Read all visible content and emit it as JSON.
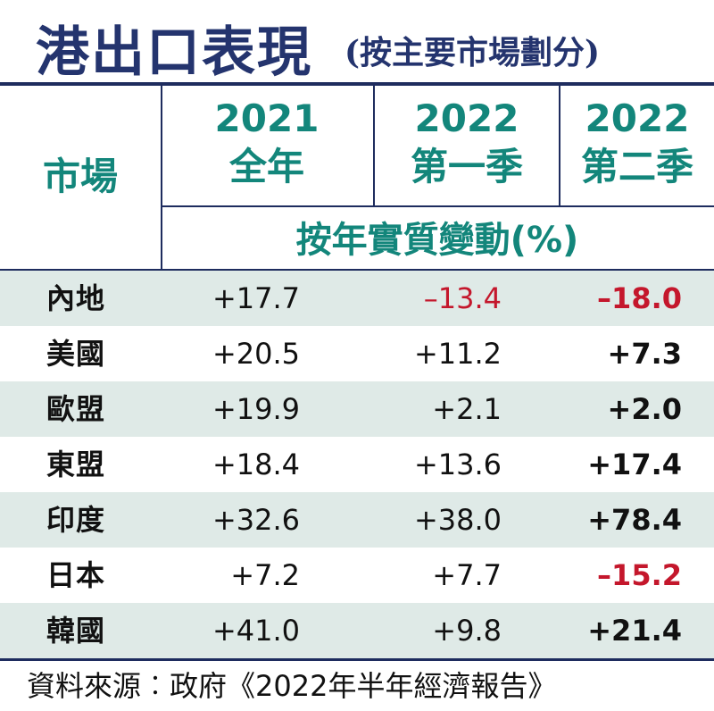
{
  "title": "港出口表現",
  "subtitle": "(按主要市場劃分)",
  "headers": {
    "market": "市場",
    "col2021_year": "2021",
    "col2021_period": "全年",
    "colq1_year": "2022",
    "colq1_period": "第一季",
    "colq2_year": "2022",
    "colq2_period": "第二季",
    "unit": "按年實質變動(%)"
  },
  "chart_data": {
    "type": "table",
    "columns": [
      "市場",
      "2021 全年",
      "2022 第一季",
      "2022 第二季"
    ],
    "rows": [
      {
        "market": "內地",
        "v2021": "+17.7",
        "q1": "–13.4",
        "q2": "–18.0",
        "q1_neg": true,
        "q2_neg": true
      },
      {
        "market": "美國",
        "v2021": "+20.5",
        "q1": "+11.2",
        "q2": "+7.3",
        "q1_neg": false,
        "q2_neg": false
      },
      {
        "market": "歐盟",
        "v2021": "+19.9",
        "q1": "+2.1",
        "q2": "+2.0",
        "q1_neg": false,
        "q2_neg": false
      },
      {
        "market": "東盟",
        "v2021": "+18.4",
        "q1": "+13.6",
        "q2": "+17.4",
        "q1_neg": false,
        "q2_neg": false
      },
      {
        "market": "印度",
        "v2021": "+32.6",
        "q1": "+38.0",
        "q2": "+78.4",
        "q1_neg": false,
        "q2_neg": false
      },
      {
        "market": "日本",
        "v2021": "+7.2",
        "q1": "+7.7",
        "q2": "–15.2",
        "q1_neg": false,
        "q2_neg": true
      },
      {
        "market": "韓國",
        "v2021": "+41.0",
        "q1": "+9.8",
        "q2": "+21.4",
        "q1_neg": false,
        "q2_neg": false
      }
    ]
  },
  "source": "資料來源︰政府《2022年半年經濟報告》",
  "colors": {
    "title": "#24346e",
    "header_teal": "#13867b",
    "negative": "#c4172c",
    "row_shade": "#dfeae7",
    "rule": "#1e2c5e"
  }
}
